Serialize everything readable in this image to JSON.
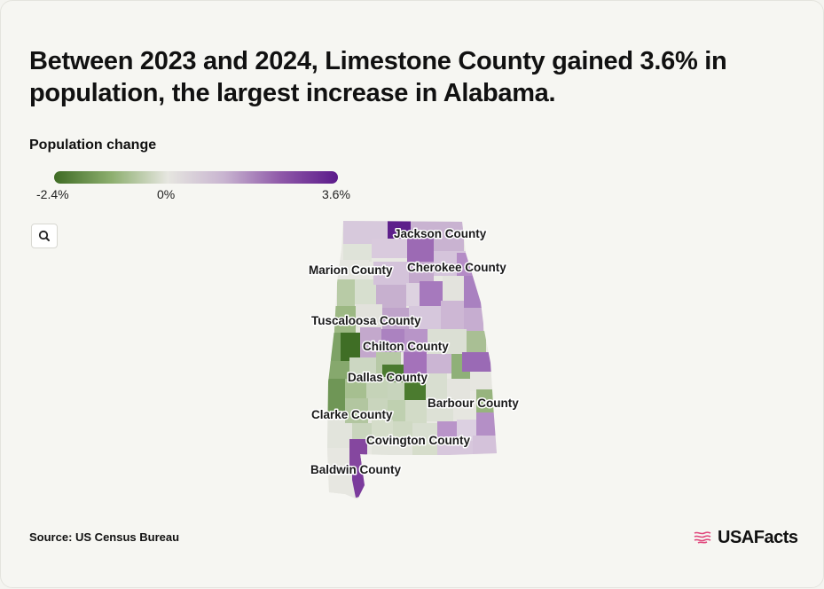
{
  "headline": "Between 2023 and 2024, Limestone County gained 3.6% in population, the largest increase in Alabama.",
  "legend": {
    "title": "Population change",
    "min_label": "-2.4%",
    "mid_label": "0%",
    "max_label": "3.6%",
    "min_value": -2.4,
    "max_value": 3.6,
    "colors": [
      "#3e6b24",
      "#8cae6e",
      "#e6e6e0",
      "#c8b4d0",
      "#8e58a8",
      "#5b1a8a"
    ]
  },
  "zoom": {
    "icon": "search-icon"
  },
  "map": {
    "state": "Alabama",
    "labels": [
      "Jackson County",
      "Marion County",
      "Cherokee County",
      "Tuscaloosa County",
      "Chilton County",
      "Dallas County",
      "Barbour County",
      "Clarke County",
      "Covington County",
      "Baldwin County"
    ]
  },
  "source": "Source: US Census Bureau",
  "brand": {
    "name": "USAFacts",
    "icon": "us-flag-icon",
    "accent": "#e0457b"
  }
}
